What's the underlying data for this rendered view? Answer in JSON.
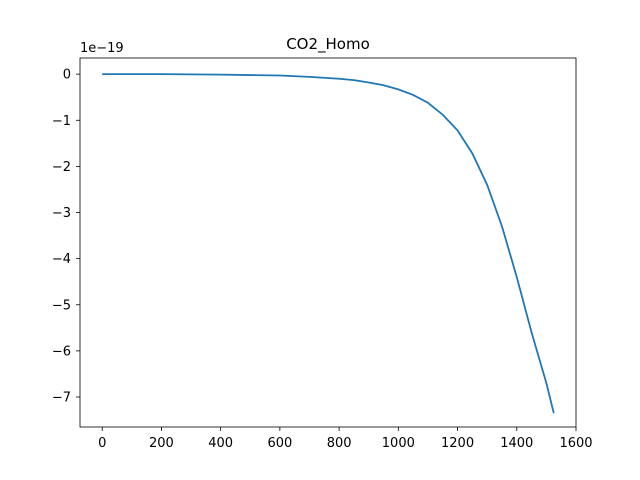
{
  "chart_data": {
    "type": "line",
    "title": "CO2_Homo",
    "xlabel": "",
    "ylabel": "",
    "y_offset_label": "1e−19",
    "xlim": [
      -75,
      1600
    ],
    "ylim": [
      -7.65,
      0.35
    ],
    "x_ticks": [
      0,
      200,
      400,
      600,
      800,
      1000,
      1200,
      1400,
      1600
    ],
    "x_tick_labels": [
      "0",
      "200",
      "400",
      "600",
      "800",
      "1000",
      "1200",
      "1400",
      "1600"
    ],
    "y_ticks": [
      0,
      -1,
      -2,
      -3,
      -4,
      -5,
      -6,
      -7
    ],
    "y_tick_labels": [
      "0",
      "−1",
      "−2",
      "−3",
      "−4",
      "−5",
      "−6",
      "−7"
    ],
    "grid": false,
    "series": [
      {
        "color": "#1f77b4",
        "x": [
          0,
          100,
          200,
          300,
          400,
          500,
          600,
          700,
          800,
          850,
          900,
          950,
          1000,
          1050,
          1100,
          1150,
          1200,
          1250,
          1300,
          1350,
          1400,
          1450,
          1500,
          1525
        ],
        "y": [
          0,
          0,
          0,
          -0.005,
          -0.01,
          -0.02,
          -0.03,
          -0.06,
          -0.1,
          -0.13,
          -0.18,
          -0.24,
          -0.33,
          -0.45,
          -0.62,
          -0.88,
          -1.22,
          -1.72,
          -2.4,
          -3.3,
          -4.4,
          -5.6,
          -6.7,
          -7.35
        ]
      }
    ]
  }
}
